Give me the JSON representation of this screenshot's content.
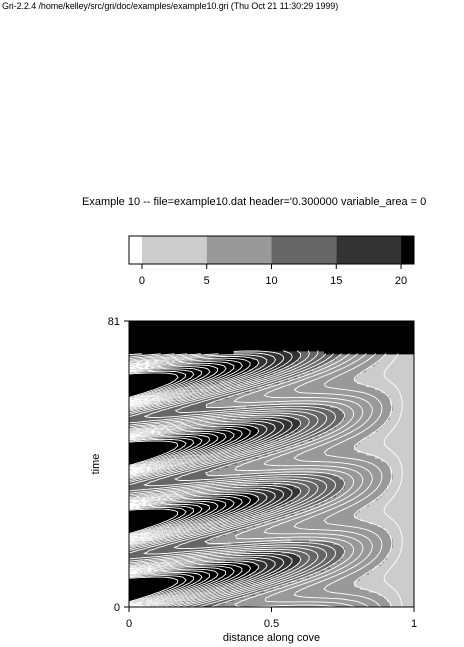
{
  "page": {
    "header": "Gri-2.2.4 /home/kelley/src/gri/doc/examples/example10.gri (Thu Oct 21 11:30:29 1999)"
  },
  "chart_data": {
    "type": "heatmap",
    "title": "Example 10 -- file=example10.dat header='0.300000 variable_area = 0",
    "xlabel": "distance along cove",
    "ylabel": "time",
    "xlim": [
      0,
      1
    ],
    "ylim": [
      0,
      81
    ],
    "xticks": [
      {
        "v": 0,
        "label": "0"
      },
      {
        "v": 0.5,
        "label": "0.5"
      },
      {
        "v": 1,
        "label": "1"
      }
    ],
    "yticks": [
      {
        "v": 0,
        "label": "0"
      },
      {
        "v": 81,
        "label": "81"
      }
    ],
    "colorbar": {
      "levels": [
        -1,
        0,
        5,
        10,
        15,
        20,
        21
      ],
      "colors": [
        "#ffffff",
        "#cccccc",
        "#999999",
        "#666666",
        "#333333",
        "#000000"
      ],
      "ticks": [
        {
          "v": 0,
          "label": "0"
        },
        {
          "v": 5,
          "label": "5"
        },
        {
          "v": 10,
          "label": "10"
        },
        {
          "v": 15,
          "label": "15"
        },
        {
          "v": 20,
          "label": "20"
        }
      ]
    },
    "field": {
      "description": "tidal wave fronts propagating along cove; value falls with distance, oscillates with time",
      "contour_interval": 1,
      "gray_levels": [
        0,
        5,
        10,
        15,
        20
      ],
      "masked_region": "above wave front (value > 20) shown black",
      "periods_in_time": 4.2
    }
  }
}
